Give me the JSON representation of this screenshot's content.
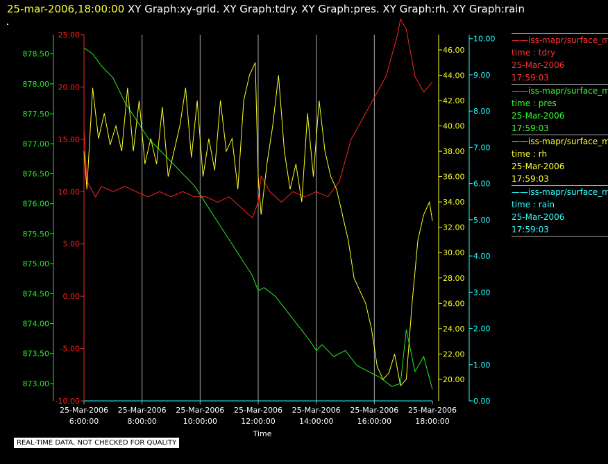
{
  "header": {
    "timestamp": "25-mar-2006,18:00:00",
    "titles": "XY Graph:xy-grid.  XY Graph:tdry.  XY Graph:pres.  XY Graph:rh.  XY Graph:rain"
  },
  "note": "REAL-TIME DATA, NOT CHECKED FOR QUALITY",
  "legend": [
    {
      "name": "iss-mapr/surface_m",
      "var": "time : tdry",
      "date": "25-Mar-2006",
      "time": "17:59:03",
      "color": "#ff3333"
    },
    {
      "name": "iss-mapr/surface_m",
      "var": "time : pres",
      "date": "25-Mar-2006",
      "time": "17:59:03",
      "color": "#33ff33"
    },
    {
      "name": "iss-mapr/surface_m",
      "var": "time : rh",
      "date": "25-Mar-2006",
      "time": "17:59:03",
      "color": "#ffff33"
    },
    {
      "name": "iss-mapr/surface_m",
      "var": "time : rain",
      "date": "25-Mar-2006",
      "time": "17:59:03",
      "color": "#33ffff"
    }
  ],
  "colors": {
    "tdry": "#ff2222",
    "pres": "#22ee22",
    "rh": "#ffff22",
    "rain": "#22ffff",
    "grid": "#aaaaaa",
    "text": "#ffffff"
  },
  "chart_data": {
    "type": "line",
    "xlabel": "Time",
    "x_ticks": [
      {
        "date": "25-Mar-2006",
        "time": "6:00:00"
      },
      {
        "date": "25-Mar-2006",
        "time": "8:00:00"
      },
      {
        "date": "25-Mar-2006",
        "time": "10:00:00"
      },
      {
        "date": "25-Mar-2006",
        "time": "12:00:00"
      },
      {
        "date": "25-Mar-2006",
        "time": "14:00:00"
      },
      {
        "date": "25-Mar-2006",
        "time": "16:00:00"
      },
      {
        "date": "25-Mar-2006",
        "time": "18:00:00"
      }
    ],
    "xlim_hours": [
      6,
      18
    ],
    "grid": "vertical",
    "axes": {
      "tdry": {
        "ylim": [
          -10,
          25
        ],
        "ticks": [
          "-10.00",
          "-5.00",
          "0.00",
          "5.00",
          "10.00",
          "15.00",
          "20.00",
          "25.00"
        ]
      },
      "pres": {
        "ylim": [
          872.71,
          878.82
        ],
        "ticks": [
          "873.00",
          "873.50",
          "874.00",
          "874.50",
          "875.00",
          "875.50",
          "876.00",
          "876.50",
          "877.00",
          "877.50",
          "878.00",
          "878.50"
        ]
      },
      "rh": {
        "ylim": [
          18.3,
          47.2
        ],
        "ticks": [
          "20.00",
          "22.00",
          "24.00",
          "26.00",
          "28.00",
          "30.00",
          "32.00",
          "34.00",
          "36.00",
          "38.00",
          "40.00",
          "42.00",
          "44.00",
          "46.00"
        ]
      },
      "rain": {
        "ylim": [
          0,
          10.11
        ],
        "ticks": [
          "0.00",
          "1.00",
          "2.00",
          "3.00",
          "4.00",
          "5.00",
          "6.00",
          "7.00",
          "8.00",
          "9.00",
          "10.00"
        ]
      }
    },
    "series": [
      {
        "name": "time : tdry",
        "axis": "tdry",
        "x": [
          6.0,
          6.1,
          6.4,
          6.6,
          7.0,
          7.4,
          7.8,
          8.2,
          8.6,
          9.0,
          9.4,
          9.8,
          10.2,
          10.6,
          11.0,
          11.4,
          11.8,
          12.0,
          12.1,
          12.4,
          12.8,
          13.2,
          13.6,
          14.0,
          14.4,
          14.8,
          15.2,
          15.6,
          16.0,
          16.4,
          16.8,
          16.9,
          17.1,
          17.4,
          17.7,
          18.0
        ],
        "values": [
          16,
          11,
          9.5,
          10.5,
          10,
          10.5,
          10,
          9.5,
          10,
          9.5,
          10,
          9.5,
          9.5,
          9,
          9.5,
          8.5,
          7.5,
          9,
          11.5,
          10,
          9,
          10,
          9.5,
          10,
          9.5,
          11,
          15,
          17,
          19,
          21,
          25,
          26.5,
          25.5,
          21,
          19.5,
          20.5
        ]
      },
      {
        "name": "time : pres",
        "axis": "pres",
        "x": [
          6.0,
          6.3,
          6.6,
          7.0,
          7.4,
          7.8,
          8.2,
          8.6,
          9.0,
          9.4,
          9.8,
          10.2,
          10.6,
          11.0,
          11.4,
          11.8,
          12.0,
          12.2,
          12.6,
          13.0,
          13.4,
          13.8,
          14.0,
          14.2,
          14.6,
          15.0,
          15.4,
          15.8,
          16.2,
          16.6,
          16.9,
          17.1,
          17.4,
          17.7,
          18.0
        ],
        "values": [
          878.6,
          878.5,
          878.3,
          878.1,
          877.7,
          877.4,
          877.1,
          876.9,
          876.7,
          876.5,
          876.3,
          876.0,
          875.7,
          875.4,
          875.1,
          874.8,
          874.55,
          874.6,
          874.45,
          874.2,
          873.95,
          873.7,
          873.55,
          873.65,
          873.45,
          873.55,
          873.3,
          873.2,
          873.1,
          872.95,
          873.0,
          873.9,
          873.2,
          873.45,
          872.9
        ]
      },
      {
        "name": "time : rh",
        "axis": "rh",
        "x": [
          6.0,
          6.1,
          6.3,
          6.5,
          6.7,
          6.9,
          7.1,
          7.3,
          7.5,
          7.7,
          7.9,
          8.1,
          8.3,
          8.5,
          8.7,
          8.9,
          9.1,
          9.3,
          9.5,
          9.7,
          9.9,
          10.1,
          10.3,
          10.5,
          10.7,
          10.9,
          11.1,
          11.3,
          11.5,
          11.7,
          11.9,
          12.0,
          12.1,
          12.3,
          12.5,
          12.7,
          12.9,
          13.1,
          13.3,
          13.5,
          13.7,
          13.9,
          14.1,
          14.3,
          14.5,
          14.7,
          14.9,
          15.1,
          15.3,
          15.5,
          15.7,
          15.9,
          16.1,
          16.3,
          16.5,
          16.7,
          16.9,
          17.1,
          17.3,
          17.5,
          17.7,
          17.9,
          18.0
        ],
        "values": [
          38,
          35,
          43,
          39,
          41,
          38.5,
          40,
          38,
          43,
          38,
          42,
          37,
          39,
          37,
          41.5,
          36,
          38,
          40,
          43,
          37.5,
          42,
          36,
          39,
          36.5,
          42,
          38,
          39,
          35,
          42,
          44,
          45,
          36,
          33,
          37,
          40,
          44,
          38,
          35,
          37,
          34,
          41,
          36,
          42,
          38,
          36,
          35,
          33,
          31,
          28,
          27,
          26,
          24,
          21,
          20,
          20.5,
          22,
          19.5,
          20,
          26,
          31,
          33,
          34,
          32.5
        ]
      },
      {
        "name": "time : rain",
        "axis": "rain",
        "x": [
          6.0,
          18.0
        ],
        "values": [
          0,
          0
        ]
      }
    ]
  }
}
